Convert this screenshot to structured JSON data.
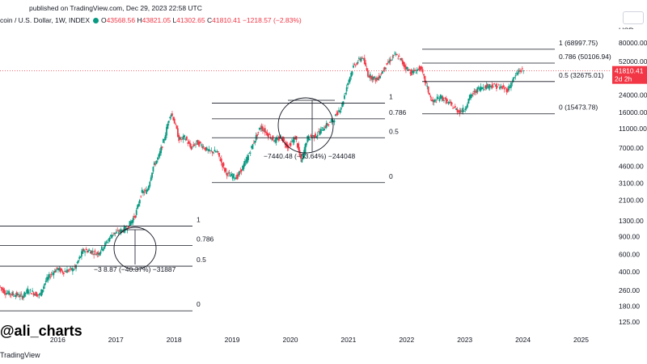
{
  "header": {
    "published": "published on TradingView.com, Dec 29, 2023 22:58 UTC",
    "symbol": "coin / U.S. Dollar, 1W, INDEX",
    "o_label": "O",
    "o": "43568.56",
    "h_label": "H",
    "h": "43821.05",
    "l_label": "L",
    "l": "41302.65",
    "c_label": "C",
    "c": "41810.41",
    "change": "−1218.57 (−2.83%)"
  },
  "axis": {
    "currency": "USD",
    "price_ticks": [
      "80000.00",
      "52000.00",
      "24000.00",
      "16000.00",
      "11000.00",
      "7000.00",
      "4600.00",
      "3100.00",
      "2100.00",
      "1300.00",
      "900.00",
      "600.00",
      "400.00",
      "260.00",
      "180.00",
      "125.00"
    ],
    "year_ticks": [
      "2016",
      "2017",
      "2018",
      "2019",
      "2020",
      "2021",
      "2022",
      "2023",
      "2024",
      "2025"
    ],
    "last_price": "41810.41",
    "countdown": "2d 2h"
  },
  "watermark": "@ali_charts",
  "footer": "TradingView",
  "fib_2017": {
    "levels": [
      {
        "label": "1",
        "price": 1150
      },
      {
        "label": "0.786",
        "price": 735
      },
      {
        "label": "0.5",
        "price": 455
      },
      {
        "label": "0",
        "price": 162
      }
    ],
    "annotation": "−3 8.87 (−40.37%) −31887"
  },
  "fib_2019": {
    "levels": [
      {
        "label": "1",
        "price": 19800
      },
      {
        "label": "0.786",
        "price": 13800
      },
      {
        "label": "0.5",
        "price": 8900
      },
      {
        "label": "0",
        "price": 3150
      }
    ],
    "annotation": "−7440.48 (−53.64%) −244048"
  },
  "fib_2022": {
    "levels": [
      {
        "label": "1 (68997.75)",
        "price": 68997.75
      },
      {
        "label": "0.786 (50106.94)",
        "price": 50106.94
      },
      {
        "label": "0.5 (32675.01)",
        "price": 32675.01
      },
      {
        "label": "0 (15473.78)",
        "price": 15473.78
      }
    ]
  },
  "chart_data": {
    "type": "candlestick",
    "title": "coin / U.S. Dollar, 1W, INDEX",
    "y_scale": "log",
    "ylim": [
      100,
      110000
    ],
    "xlim": [
      2015.0,
      2025.5
    ],
    "price_path": [
      [
        2015.0,
        290
      ],
      [
        2015.1,
        250
      ],
      [
        2015.2,
        240
      ],
      [
        2015.3,
        235
      ],
      [
        2015.4,
        225
      ],
      [
        2015.5,
        260
      ],
      [
        2015.6,
        245
      ],
      [
        2015.7,
        230
      ],
      [
        2015.8,
        320
      ],
      [
        2015.9,
        380
      ],
      [
        2016.0,
        430
      ],
      [
        2016.1,
        400
      ],
      [
        2016.2,
        415
      ],
      [
        2016.3,
        430
      ],
      [
        2016.45,
        660
      ],
      [
        2016.55,
        650
      ],
      [
        2016.7,
        610
      ],
      [
        2016.8,
        720
      ],
      [
        2016.95,
        960
      ],
      [
        2017.05,
        1000
      ],
      [
        2017.2,
        1100
      ],
      [
        2017.35,
        1500
      ],
      [
        2017.45,
        2500
      ],
      [
        2017.55,
        2600
      ],
      [
        2017.65,
        4500
      ],
      [
        2017.75,
        5800
      ],
      [
        2017.85,
        9000
      ],
      [
        2017.95,
        16000
      ],
      [
        2018.0,
        14000
      ],
      [
        2018.1,
        8500
      ],
      [
        2018.2,
        9000
      ],
      [
        2018.3,
        7000
      ],
      [
        2018.4,
        8000
      ],
      [
        2018.5,
        7400
      ],
      [
        2018.6,
        6500
      ],
      [
        2018.75,
        6400
      ],
      [
        2018.9,
        4000
      ],
      [
        2018.97,
        3700
      ],
      [
        2019.1,
        3600
      ],
      [
        2019.25,
        5200
      ],
      [
        2019.4,
        8500
      ],
      [
        2019.5,
        11500
      ],
      [
        2019.6,
        10000
      ],
      [
        2019.75,
        8200
      ],
      [
        2019.85,
        9000
      ],
      [
        2019.97,
        7200
      ],
      [
        2020.1,
        9000
      ],
      [
        2020.2,
        5000
      ],
      [
        2020.3,
        8800
      ],
      [
        2020.45,
        9400
      ],
      [
        2020.6,
        11500
      ],
      [
        2020.75,
        13500
      ],
      [
        2020.9,
        19000
      ],
      [
        2021.0,
        32000
      ],
      [
        2021.1,
        47000
      ],
      [
        2021.25,
        58000
      ],
      [
        2021.35,
        38000
      ],
      [
        2021.5,
        34000
      ],
      [
        2021.65,
        47000
      ],
      [
        2021.8,
        61000
      ],
      [
        2021.88,
        57000
      ],
      [
        2021.97,
        47000
      ],
      [
        2022.1,
        40000
      ],
      [
        2022.25,
        45000
      ],
      [
        2022.35,
        30000
      ],
      [
        2022.45,
        20000
      ],
      [
        2022.6,
        23000
      ],
      [
        2022.75,
        19500
      ],
      [
        2022.9,
        16500
      ],
      [
        2023.0,
        17000
      ],
      [
        2023.1,
        23000
      ],
      [
        2023.25,
        28000
      ],
      [
        2023.45,
        30000
      ],
      [
        2023.6,
        29000
      ],
      [
        2023.75,
        27000
      ],
      [
        2023.85,
        35000
      ],
      [
        2023.95,
        42500
      ],
      [
        2024.0,
        41810
      ]
    ]
  }
}
